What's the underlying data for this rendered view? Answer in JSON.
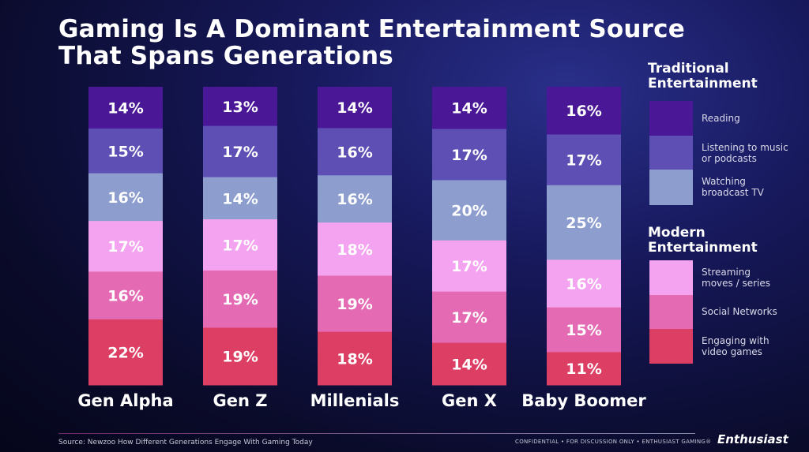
{
  "title_line1": "Gaming Is A Dominant Entertainment Source",
  "title_line2": "That Spans Generations",
  "chart_data": {
    "type": "bar",
    "stacked": true,
    "categories": [
      "Gen Alpha",
      "Gen Z",
      "Millenials",
      "Gen X",
      "Baby Boomer"
    ],
    "series": [
      {
        "name": "Reading",
        "color": "#4a1896",
        "values": [
          14,
          13,
          14,
          14,
          16
        ]
      },
      {
        "name": "Listening to music or podcasts",
        "color": "#5e4fb5",
        "values": [
          15,
          17,
          16,
          17,
          17
        ]
      },
      {
        "name": "Watching broadcast TV",
        "color": "#8c9dce",
        "values": [
          16,
          14,
          16,
          20,
          25
        ]
      },
      {
        "name": "Streaming moves / series",
        "color": "#f3a3ef",
        "values": [
          17,
          17,
          18,
          17,
          16
        ]
      },
      {
        "name": "Social Networks",
        "color": "#e46bb3",
        "values": [
          16,
          19,
          19,
          17,
          15
        ]
      },
      {
        "name": "Engaging with video games",
        "color": "#dd3f64",
        "values": [
          22,
          19,
          18,
          14,
          11
        ]
      }
    ],
    "value_suffix": "%"
  },
  "legend": {
    "traditional_heading_line1": "Traditional",
    "traditional_heading_line2": "Entertainment",
    "modern_heading_line1": "Modern",
    "modern_heading_line2": "Entertainment",
    "items": [
      {
        "line1": "Reading",
        "line2": ""
      },
      {
        "line1": "Listening to music",
        "line2": "or podcasts"
      },
      {
        "line1": "Watching",
        "line2": "broadcast TV"
      },
      {
        "line1": "Streaming",
        "line2": "moves / series"
      },
      {
        "line1": "Social Networks",
        "line2": ""
      },
      {
        "line1": "Engaging with",
        "line2": "video games"
      }
    ]
  },
  "footer": {
    "source": "Source: Newzoo How Different Generations Engage With Gaming Today",
    "confidential": "CONFIDENTIAL  •  FOR DISCUSSION ONLY  •  ENTHUSIAST GAMING®",
    "brand": "Enthusiast"
  }
}
